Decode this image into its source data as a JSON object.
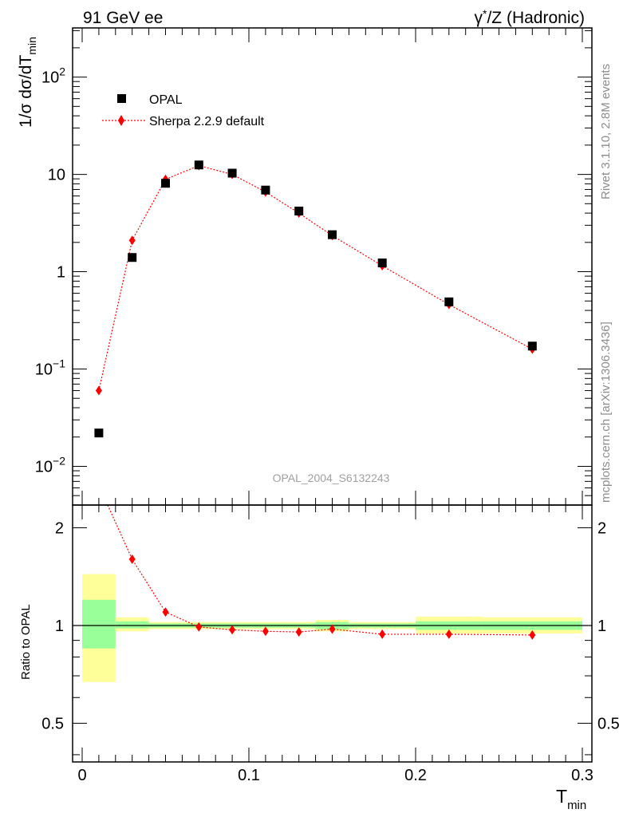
{
  "header": {
    "left": "91 GeV ee",
    "right_prefix": "γ",
    "right_star": "*",
    "right_suffix": "/Z (Hadronic)"
  },
  "side_text": {
    "rivet": "Rivet 3.1.10,  2.8M events",
    "mcplots": "mcplots.cern.ch [arXiv:1306.3436]"
  },
  "watermark": "OPAL_2004_S6132243",
  "legend": {
    "data_label": "OPAL",
    "mc_label": "Sherpa 2.2.9 default"
  },
  "axes": {
    "ylabel_main": "1/σ dσ/dT",
    "ylabel_main_sub": "min",
    "ylabel_ratio": "Ratio to OPAL",
    "xlabel": "T",
    "xlabel_sub": "min",
    "main_ticks": [
      {
        "v": 0.01,
        "base": "10",
        "exp": "−2"
      },
      {
        "v": 0.1,
        "base": "10",
        "exp": "−1"
      },
      {
        "v": 1,
        "base": "1",
        "exp": ""
      },
      {
        "v": 10,
        "base": "10",
        "exp": ""
      },
      {
        "v": 100,
        "base": "10",
        "exp": "2"
      }
    ],
    "ratio_ticks": [
      {
        "v": 0.5,
        "label": "0.5"
      },
      {
        "v": 1,
        "label": "1"
      },
      {
        "v": 2,
        "label": "2"
      }
    ],
    "x_ticks": [
      {
        "v": 0,
        "label": "0"
      },
      {
        "v": 0.1,
        "label": "0.1"
      },
      {
        "v": 0.2,
        "label": "0.2"
      },
      {
        "v": 0.3,
        "label": "0.3"
      }
    ]
  },
  "colors": {
    "data": "#000000",
    "mc": "#ff0000",
    "band_inner": "#99ff99",
    "band_outer": "#ffff99"
  },
  "chart_data": {
    "type": "scatter",
    "xlim": [
      0,
      0.3
    ],
    "ylim_main": [
      0.004,
      320
    ],
    "ylog_main": true,
    "ylim_ratio": [
      0.38,
      2.35
    ],
    "ylog_ratio": true,
    "series": [
      {
        "name": "OPAL",
        "bins": [
          [
            0.0,
            0.02
          ],
          [
            0.02,
            0.04
          ],
          [
            0.04,
            0.06
          ],
          [
            0.06,
            0.08
          ],
          [
            0.08,
            0.1
          ],
          [
            0.1,
            0.12
          ],
          [
            0.12,
            0.14
          ],
          [
            0.14,
            0.16
          ],
          [
            0.16,
            0.2
          ],
          [
            0.2,
            0.24
          ],
          [
            0.24,
            0.3
          ]
        ],
        "x": [
          0.01,
          0.03,
          0.05,
          0.07,
          0.09,
          0.11,
          0.13,
          0.15,
          0.18,
          0.22,
          0.27
        ],
        "y": [
          0.022,
          1.4,
          8.1,
          12.5,
          10.3,
          6.9,
          4.2,
          2.4,
          1.23,
          0.49,
          0.172
        ]
      },
      {
        "name": "Sherpa 2.2.9 default",
        "x": [
          0.01,
          0.03,
          0.05,
          0.07,
          0.09,
          0.11,
          0.13,
          0.15,
          0.18,
          0.22,
          0.27
        ],
        "y": [
          0.06,
          2.1,
          8.9,
          12.3,
          10.0,
          6.6,
          4.0,
          2.35,
          1.15,
          0.46,
          0.16
        ]
      }
    ],
    "ratio": {
      "x": [
        0.01,
        0.03,
        0.05,
        0.07,
        0.09,
        0.11,
        0.13,
        0.15,
        0.18,
        0.22,
        0.27
      ],
      "values": [
        2.7,
        1.6,
        1.1,
        0.99,
        0.97,
        0.96,
        0.955,
        0.975,
        0.94,
        0.94,
        0.935
      ],
      "band_inner": [
        [
          0.85,
          1.2
        ],
        [
          0.98,
          1.03
        ],
        [
          0.985,
          1.015
        ],
        [
          0.985,
          1.015
        ],
        [
          0.985,
          1.015
        ],
        [
          0.985,
          1.015
        ],
        [
          0.985,
          1.015
        ],
        [
          0.975,
          1.025
        ],
        [
          0.985,
          1.015
        ],
        [
          0.97,
          1.03
        ],
        [
          0.97,
          1.03
        ]
      ],
      "band_outer": [
        [
          0.67,
          1.44
        ],
        [
          0.96,
          1.06
        ],
        [
          0.975,
          1.025
        ],
        [
          0.975,
          1.025
        ],
        [
          0.975,
          1.025
        ],
        [
          0.975,
          1.025
        ],
        [
          0.975,
          1.025
        ],
        [
          0.96,
          1.04
        ],
        [
          0.975,
          1.025
        ],
        [
          0.945,
          1.065
        ],
        [
          0.945,
          1.06
        ]
      ]
    }
  }
}
